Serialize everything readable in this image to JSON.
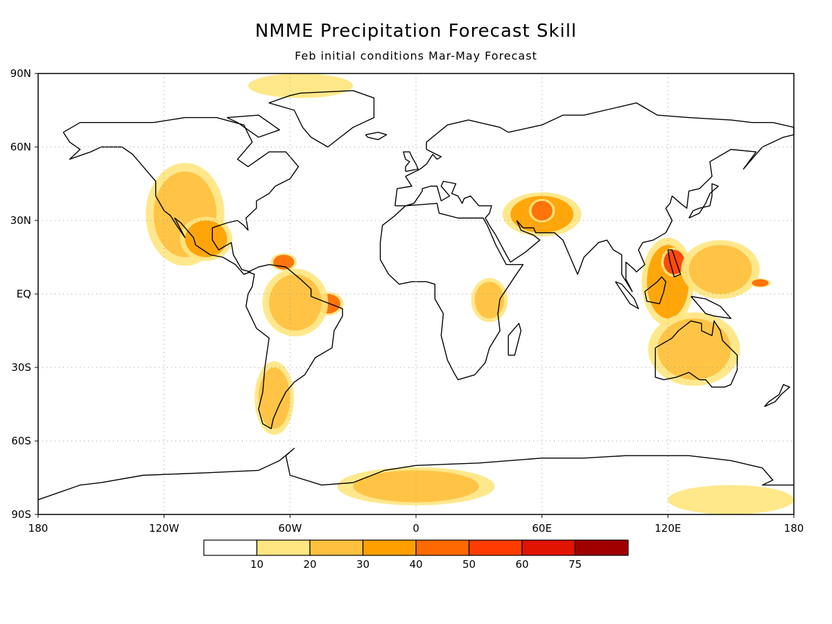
{
  "chart_data": {
    "type": "heatmap",
    "title": "NMME Precipitation Forecast Skill",
    "subtitle": "Feb initial conditions  Mar-May Forecast",
    "projection": "cylindrical-equidistant",
    "x_ticks": [
      "180",
      "120W",
      "60W",
      "0",
      "60E",
      "120E",
      "180"
    ],
    "x_tick_values": [
      -180,
      -120,
      -60,
      0,
      60,
      120,
      180
    ],
    "y_ticks": [
      "90N",
      "60N",
      "30N",
      "EQ",
      "30S",
      "60S",
      "90S"
    ],
    "y_tick_values": [
      90,
      60,
      30,
      0,
      -30,
      -60,
      -90
    ],
    "xlim": [
      -180,
      180
    ],
    "ylim": [
      -90,
      90
    ],
    "grid": true,
    "colorbar": {
      "placement": "bottom",
      "labels": [
        "10",
        "20",
        "30",
        "40",
        "50",
        "60",
        "75"
      ],
      "colors": [
        "#ffffff",
        "#ffe680",
        "#ffc040",
        "#ffa000",
        "#ff6a00",
        "#ff3c00",
        "#e01400",
        "#a00000"
      ]
    },
    "skill_regions": [
      {
        "name": "western-north-america",
        "lon": [
          -125,
          -95
        ],
        "lat": [
          15,
          50
        ],
        "level": 2
      },
      {
        "name": "gulf-mexico",
        "lon": [
          -110,
          -90
        ],
        "lat": [
          15,
          30
        ],
        "level": 3
      },
      {
        "name": "caribbean",
        "lon": [
          -68,
          -58
        ],
        "lat": [
          10,
          16
        ],
        "level": 4
      },
      {
        "name": "northeast-brazil",
        "lon": [
          -48,
          -36
        ],
        "lat": [
          -8,
          0
        ],
        "level": 4
      },
      {
        "name": "amazon",
        "lon": [
          -70,
          -45
        ],
        "lat": [
          -15,
          8
        ],
        "level": 2
      },
      {
        "name": "southern-south-america",
        "lon": [
          -75,
          -60
        ],
        "lat": [
          -55,
          -30
        ],
        "level": 2
      },
      {
        "name": "middle-east",
        "lon": [
          45,
          75
        ],
        "lat": [
          25,
          40
        ],
        "level": 3
      },
      {
        "name": "iran",
        "lon": [
          55,
          65
        ],
        "lat": [
          30,
          38
        ],
        "level": 4
      },
      {
        "name": "east-africa",
        "lon": [
          28,
          42
        ],
        "lat": [
          -10,
          5
        ],
        "level": 2
      },
      {
        "name": "maritime-continent",
        "lon": [
          110,
          130
        ],
        "lat": [
          -10,
          20
        ],
        "level": 3
      },
      {
        "name": "philippines",
        "lon": [
          118,
          128
        ],
        "lat": [
          8,
          18
        ],
        "level": 5
      },
      {
        "name": "west-pacific",
        "lon": [
          130,
          160
        ],
        "lat": [
          0,
          20
        ],
        "level": 2
      },
      {
        "name": "central-pacific",
        "lon": [
          160,
          168
        ],
        "lat": [
          3,
          6
        ],
        "level": 4
      },
      {
        "name": "australia",
        "lon": [
          115,
          150
        ],
        "lat": [
          -35,
          -10
        ],
        "level": 2
      },
      {
        "name": "antarctic-atlantic",
        "lon": [
          -30,
          30
        ],
        "lat": [
          -85,
          -72
        ],
        "level": 2
      },
      {
        "name": "antarctic-pacific",
        "lon": [
          120,
          180
        ],
        "lat": [
          -90,
          -78
        ],
        "level": 1
      },
      {
        "name": "arctic",
        "lon": [
          -80,
          -30
        ],
        "lat": [
          80,
          90
        ],
        "level": 1
      }
    ]
  }
}
